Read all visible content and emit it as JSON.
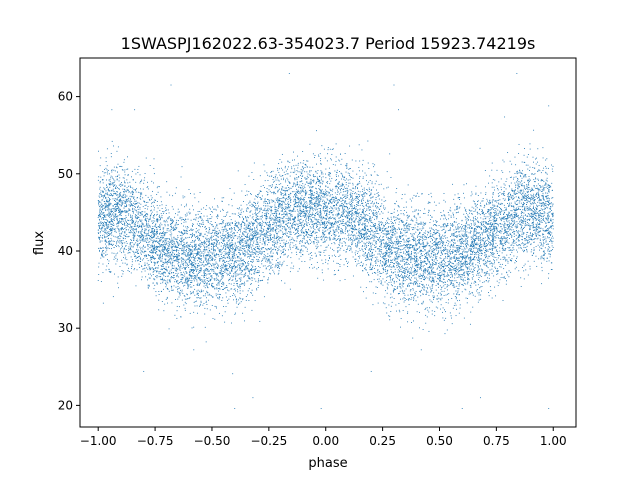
{
  "chart_data": {
    "type": "scatter",
    "title": "1SWASPJ162022.63-354023.7 Period 15923.74219s",
    "xlabel": "phase",
    "ylabel": "flux",
    "xlim": [
      -1.08,
      1.1
    ],
    "ylim": [
      17.2,
      65.0
    ],
    "x_ticks": [
      -1.0,
      -0.75,
      -0.5,
      -0.25,
      0.0,
      0.25,
      0.5,
      0.75,
      1.0
    ],
    "x_tick_labels": [
      "−1.00",
      "−0.75",
      "−0.50",
      "−0.25",
      "0.00",
      "0.25",
      "0.50",
      "0.75",
      "1.00"
    ],
    "y_ticks": [
      20,
      30,
      40,
      50,
      60
    ],
    "y_tick_labels": [
      "20",
      "30",
      "40",
      "50",
      "60"
    ],
    "grid": false,
    "legend": "none",
    "marker_color": "#1f77b4",
    "series": [
      {
        "mean_curve": {
          "x": [
            -1.0,
            -0.9,
            -0.8,
            -0.7,
            -0.6,
            -0.5,
            -0.4,
            -0.3,
            -0.2,
            -0.1,
            0.0,
            0.1,
            0.2,
            0.3,
            0.4,
            0.5,
            0.6,
            0.7,
            0.8,
            0.9,
            1.0
          ],
          "y": [
            44.2,
            45.0,
            42.5,
            40.0,
            39.2,
            39.0,
            39.5,
            41.5,
            44.0,
            45.5,
            45.3,
            44.8,
            42.5,
            40.0,
            39.2,
            39.0,
            39.5,
            41.5,
            44.0,
            45.2,
            44.2
          ]
        },
        "scatter_sd": 3.2,
        "points_count": 12000,
        "outliers": [
          {
            "x": -0.68,
            "y": 61.5
          },
          {
            "x": -0.84,
            "y": 58.3
          },
          {
            "x": -0.94,
            "y": 58.3
          },
          {
            "x": 0.3,
            "y": 61.5
          },
          {
            "x": 0.32,
            "y": 58.3
          },
          {
            "x": 0.84,
            "y": 63.0
          },
          {
            "x": 0.98,
            "y": 58.8
          },
          {
            "x": -0.16,
            "y": 63.0
          },
          {
            "x": -0.4,
            "y": 19.6
          },
          {
            "x": 0.6,
            "y": 19.6
          },
          {
            "x": -0.8,
            "y": 24.4
          },
          {
            "x": 0.2,
            "y": 24.4
          },
          {
            "x": 0.98,
            "y": 19.6
          },
          {
            "x": -0.02,
            "y": 19.6
          },
          {
            "x": -0.32,
            "y": 21.0
          },
          {
            "x": 0.68,
            "y": 21.0
          },
          {
            "x": -0.58,
            "y": 27.2
          },
          {
            "x": 0.42,
            "y": 27.2
          }
        ]
      }
    ]
  }
}
